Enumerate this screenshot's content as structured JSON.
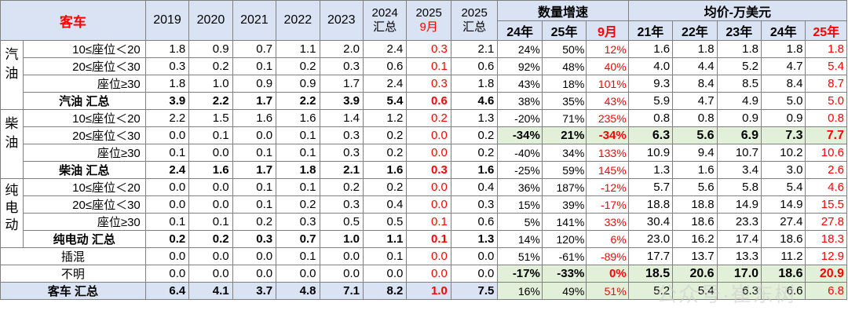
{
  "header": {
    "title": "客车",
    "years": [
      "2019",
      "2020",
      "2021",
      "2022",
      "2023"
    ],
    "col_2024_top": "2024",
    "col_2024_bottom": "汇总",
    "col_2025m_top": "2025",
    "col_2025m_bottom": "9月",
    "col_2025t_top": "2025",
    "col_2025t_bottom": "汇总",
    "growth_title": "数量增速",
    "growth_sub": [
      "24年",
      "25年",
      "9月"
    ],
    "price_title": "均价-万美元",
    "price_sub": [
      "21年",
      "22年",
      "23年",
      "24年",
      "25年"
    ]
  },
  "groups": {
    "gasoline": "汽油",
    "diesel": "柴油",
    "ev": "纯电动"
  },
  "rows": [
    {
      "name": "10≤座位＜20",
      "v": [
        "1.8",
        "0.9",
        "0.7",
        "1.1",
        "2.0",
        "2.4",
        "0.3",
        "2.1"
      ],
      "g": [
        "24%",
        "50%",
        "12%"
      ],
      "p": [
        "1.6",
        "1.8",
        "1.8",
        "1.8",
        "1.8"
      ]
    },
    {
      "name": "20≤座位＜30",
      "v": [
        "0.3",
        "0.2",
        "0.1",
        "0.2",
        "0.3",
        "0.6",
        "0.1",
        "0.6"
      ],
      "g": [
        "92%",
        "48%",
        "40%"
      ],
      "p": [
        "4.0",
        "4.4",
        "5.2",
        "4.7",
        "5.4"
      ]
    },
    {
      "name": "座位≥30",
      "v": [
        "1.8",
        "1.0",
        "0.9",
        "0.9",
        "1.7",
        "2.4",
        "0.3",
        "1.8"
      ],
      "g": [
        "43%",
        "18%",
        "101%"
      ],
      "p": [
        "9.3",
        "8.4",
        "8.5",
        "8.4",
        "8.7"
      ]
    },
    {
      "name": "汽油 汇总",
      "v": [
        "3.9",
        "2.2",
        "1.7",
        "2.2",
        "3.9",
        "5.4",
        "0.6",
        "4.6"
      ],
      "g": [
        "38%",
        "35%",
        "43%"
      ],
      "p": [
        "5.9",
        "4.7",
        "4.9",
        "5.0",
        "5.0"
      ]
    },
    {
      "name": "10≤座位＜20",
      "v": [
        "2.2",
        "1.5",
        "1.6",
        "1.6",
        "1.4",
        "1.2",
        "0.2",
        "1.3"
      ],
      "g": [
        "-20%",
        "71%",
        "235%"
      ],
      "p": [
        "0.8",
        "0.8",
        "0.9",
        "0.9",
        "0.8"
      ]
    },
    {
      "name": "20≤座位＜30",
      "v": [
        "0.0",
        "0.1",
        "0.0",
        "0.1",
        "0.3",
        "0.2",
        "0.0",
        "0.2"
      ],
      "g": [
        "-34%",
        "21%",
        "-34%"
      ],
      "p": [
        "6.3",
        "5.6",
        "6.9",
        "7.3",
        "7.7"
      ]
    },
    {
      "name": "座位≥30",
      "v": [
        "0.1",
        "0.0",
        "0.1",
        "0.1",
        "0.3",
        "0.2",
        "0.0",
        "0.2"
      ],
      "g": [
        "-40%",
        "34%",
        "133%"
      ],
      "p": [
        "10.9",
        "9.4",
        "10.7",
        "10.2",
        "10.6"
      ]
    },
    {
      "name": "柴油 汇总",
      "v": [
        "2.4",
        "1.6",
        "1.7",
        "1.8",
        "2.1",
        "1.6",
        "0.3",
        "1.6"
      ],
      "g": [
        "-25%",
        "59%",
        "145%"
      ],
      "p": [
        "1.3",
        "1.6",
        "3.4",
        "3.0",
        "2.6"
      ]
    },
    {
      "name": "10≤座位＜20",
      "v": [
        "0.0",
        "0.0",
        "0.1",
        "0.1",
        "0.2",
        "0.2",
        "0.0",
        "0.4"
      ],
      "g": [
        "36%",
        "187%",
        "-12%"
      ],
      "p": [
        "5.7",
        "5.6",
        "5.8",
        "5.4",
        "4.6"
      ]
    },
    {
      "name": "20≤座位＜30",
      "v": [
        "0.0",
        "0.0",
        "0.1",
        "0.2",
        "0.3",
        "0.4",
        "0.0",
        "0.3"
      ],
      "g": [
        "15%",
        "39%",
        "-17%"
      ],
      "p": [
        "18.8",
        "18.8",
        "14.9",
        "14.9",
        "15.5"
      ]
    },
    {
      "name": "座位≥30",
      "v": [
        "0.1",
        "0.1",
        "0.2",
        "0.3",
        "0.5",
        "0.5",
        "0.1",
        "0.6"
      ],
      "g": [
        "5%",
        "141%",
        "33%"
      ],
      "p": [
        "30.4",
        "18.6",
        "23.3",
        "27.4",
        "27.8"
      ]
    },
    {
      "name": "纯电动 汇总",
      "v": [
        "0.2",
        "0.2",
        "0.3",
        "0.7",
        "1.0",
        "1.1",
        "0.1",
        "1.3"
      ],
      "g": [
        "14%",
        "120%",
        "6%"
      ],
      "p": [
        "23.0",
        "16.2",
        "17.4",
        "18.6",
        "18.3"
      ]
    },
    {
      "name": "插混",
      "v": [
        "0.0",
        "0.0",
        "0.0",
        "0.1",
        "0.0",
        "0.1",
        "0.0",
        "0.0"
      ],
      "g": [
        "51%",
        "-61%",
        "-89%"
      ],
      "p": [
        "17.7",
        "13.7",
        "13.3",
        "11.2",
        "12.9"
      ]
    },
    {
      "name": "不明",
      "v": [
        "0.0",
        "0.0",
        "0.0",
        "0.0",
        "0.0",
        "0.0",
        "0.0",
        "0.0"
      ],
      "g": [
        "-17%",
        "-33%",
        "0%"
      ],
      "p": [
        "18.5",
        "20.6",
        "17.0",
        "18.6",
        "20.9"
      ]
    },
    {
      "name": "客车 汇总",
      "v": [
        "6.4",
        "4.1",
        "3.7",
        "4.8",
        "7.1",
        "8.2",
        "1.0",
        "7.5"
      ],
      "g": [
        "16%",
        "49%",
        "51%"
      ],
      "p": [
        "5.2",
        "5.4",
        "6.3",
        "6.6",
        "6.8"
      ]
    }
  ],
  "watermark": "公众号·崔东树"
}
